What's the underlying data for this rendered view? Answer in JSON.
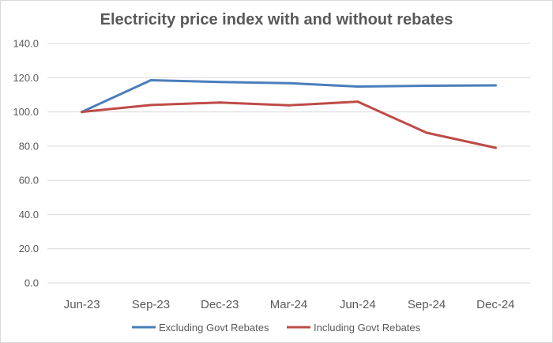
{
  "chart_data": {
    "type": "line",
    "title": "Electricity price index with and without rebates",
    "xlabel": "",
    "ylabel": "",
    "categories": [
      "Jun-23",
      "Sep-23",
      "Dec-23",
      "Mar-24",
      "Jun-24",
      "Sep-24",
      "Dec-24"
    ],
    "ylim": [
      0,
      140
    ],
    "yticks": [
      "0.0",
      "20.0",
      "40.0",
      "60.0",
      "80.0",
      "100.0",
      "120.0",
      "140.0"
    ],
    "grid": true,
    "legend_position": "bottom",
    "series": [
      {
        "name": "Excluding Govt Rebates",
        "color": "#4a7ebb",
        "values": [
          100.0,
          118.5,
          117.5,
          116.8,
          114.8,
          115.3,
          115.5
        ]
      },
      {
        "name": "Including Govt Rebates",
        "color": "#be4b48",
        "values": [
          100.0,
          104.0,
          105.5,
          103.8,
          106.0,
          87.8,
          79.0
        ]
      }
    ]
  }
}
